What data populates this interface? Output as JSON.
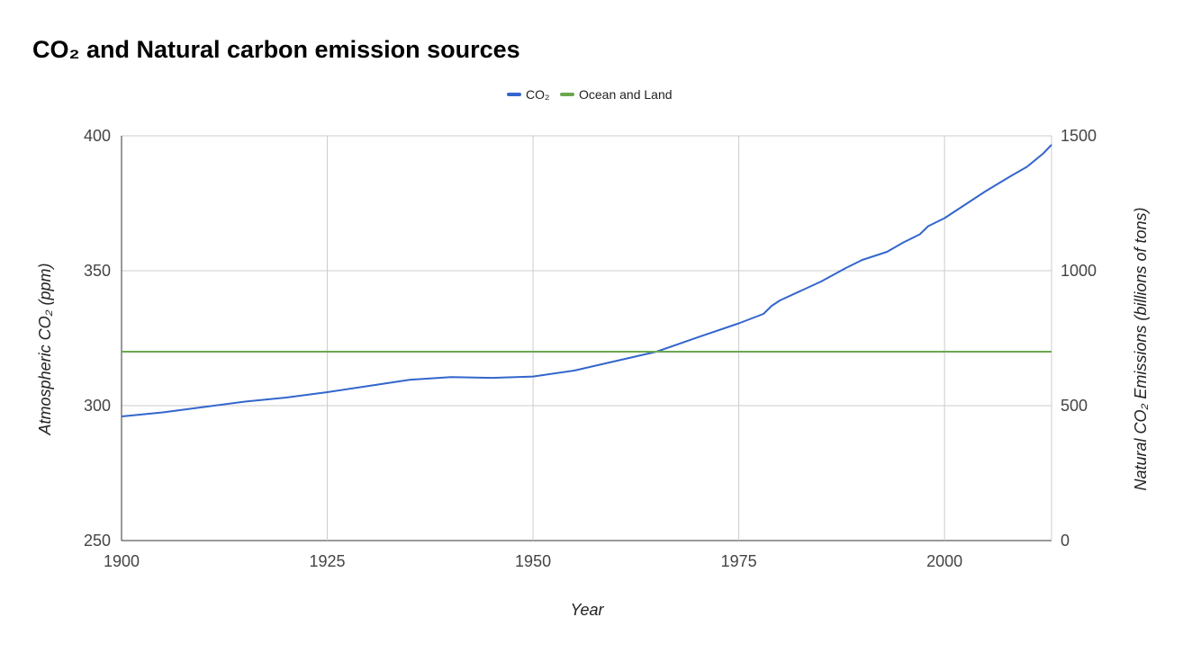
{
  "chart_data": {
    "type": "line",
    "title": "CO₂ and Natural carbon emission sources",
    "xlabel": "Year",
    "ylabel_left": "Atmospheric CO₂ (ppm)",
    "ylabel_right": "Natural CO₂ Emissions (billions of tons)",
    "xlim": [
      1900,
      2013
    ],
    "ylim_left": [
      250,
      400
    ],
    "ylim_right": [
      0,
      1500
    ],
    "x_ticks": [
      1900,
      1925,
      1950,
      1975,
      2000
    ],
    "y_ticks_left": [
      250,
      300,
      350,
      400
    ],
    "y_ticks_right": [
      0,
      500,
      1000,
      1500
    ],
    "grid": true,
    "legend_position": "top",
    "series": [
      {
        "name": "CO₂",
        "axis": "left",
        "color": "#3366cc",
        "x": [
          1900,
          1905,
          1910,
          1915,
          1920,
          1925,
          1930,
          1935,
          1940,
          1945,
          1950,
          1955,
          1960,
          1965,
          1970,
          1975,
          1978,
          1979,
          1980,
          1985,
          1988,
          1990,
          1993,
          1995,
          1997,
          1998,
          2000,
          2003,
          2005,
          2008,
          2010,
          2012,
          2013
        ],
        "y": [
          296,
          297.5,
          299.5,
          301.5,
          303,
          305,
          307.3,
          309.6,
          310.6,
          310.3,
          310.8,
          313,
          316.5,
          320,
          325.3,
          330.5,
          334,
          337,
          339,
          346,
          351,
          354,
          357,
          360.5,
          363.5,
          366.5,
          369.5,
          375.5,
          379.5,
          385,
          388.5,
          393.5,
          396.7
        ]
      },
      {
        "name": "Ocean and Land",
        "axis": "right",
        "color": "#6aa84f",
        "x": [
          1900,
          2013
        ],
        "y": [
          700,
          700
        ]
      }
    ]
  }
}
